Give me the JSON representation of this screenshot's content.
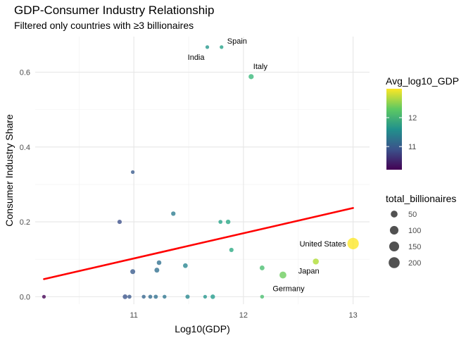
{
  "chart_data": {
    "type": "scatter",
    "title": "GDP-Consumer Industry Relationship",
    "subtitle": "Filtered only countries with ≥3 billionaires",
    "xlabel": "Log10(GDP)",
    "ylabel": "Consumer Industry Share",
    "xlim": [
      10.1,
      13.15
    ],
    "ylim": [
      -0.02,
      0.695
    ],
    "x_ticks": [
      11,
      12,
      13
    ],
    "x_tick_labels": [
      "11",
      "12",
      "13"
    ],
    "y_ticks": [
      0.0,
      0.2,
      0.4,
      0.6
    ],
    "y_tick_labels": [
      "0.0",
      "0.2",
      "0.4",
      "0.6"
    ],
    "grid": true,
    "color_scale": "viridis",
    "color_range": [
      10.2,
      13.0
    ],
    "legend_color": {
      "title": "Avg_log10_GDP",
      "ticks": [
        11,
        12
      ],
      "tick_labels": [
        "11",
        "12"
      ]
    },
    "legend_size": {
      "title": "total_billionaires",
      "values": [
        50,
        100,
        150,
        200
      ],
      "labels": [
        "50",
        "100",
        "150",
        "200"
      ]
    },
    "points": [
      {
        "x": 10.18,
        "y": 0.0,
        "n": 3
      },
      {
        "x": 10.87,
        "y": 0.2,
        "n": 8
      },
      {
        "x": 10.92,
        "y": 0.0,
        "n": 12
      },
      {
        "x": 10.96,
        "y": 0.0,
        "n": 5
      },
      {
        "x": 10.99,
        "y": 0.333,
        "n": 3
      },
      {
        "x": 10.99,
        "y": 0.067,
        "n": 15
      },
      {
        "x": 11.09,
        "y": 0.0,
        "n": 4
      },
      {
        "x": 11.15,
        "y": 0.0,
        "n": 5
      },
      {
        "x": 11.2,
        "y": 0.0,
        "n": 6
      },
      {
        "x": 11.21,
        "y": 0.071,
        "n": 14
      },
      {
        "x": 11.23,
        "y": 0.091,
        "n": 11
      },
      {
        "x": 11.28,
        "y": 0.0,
        "n": 4
      },
      {
        "x": 11.36,
        "y": 0.222,
        "n": 9
      },
      {
        "x": 11.47,
        "y": 0.083,
        "n": 12
      },
      {
        "x": 11.49,
        "y": 0.0,
        "n": 7
      },
      {
        "x": 11.65,
        "y": 0.0,
        "n": 3
      },
      {
        "x": 11.67,
        "y": 0.667,
        "n": 3
      },
      {
        "x": 11.72,
        "y": 0.0,
        "n": 10
      },
      {
        "x": 11.79,
        "y": 0.2,
        "n": 5
      },
      {
        "x": 11.8,
        "y": 0.667,
        "n": 3
      },
      {
        "x": 11.86,
        "y": 0.2,
        "n": 10
      },
      {
        "x": 11.89,
        "y": 0.125,
        "n": 8
      },
      {
        "x": 12.07,
        "y": 0.588,
        "n": 17
      },
      {
        "x": 12.17,
        "y": 0.077,
        "n": 13
      },
      {
        "x": 12.17,
        "y": 0.0,
        "n": 4
      },
      {
        "x": 12.36,
        "y": 0.058,
        "n": 52
      },
      {
        "x": 12.66,
        "y": 0.094,
        "n": 32
      },
      {
        "x": 13.0,
        "y": 0.142,
        "n": 220
      }
    ],
    "labels": [
      {
        "text": "Spain",
        "x": 11.8,
        "y": 0.667
      },
      {
        "text": "India",
        "x": 11.67,
        "y": 0.667
      },
      {
        "text": "Italy",
        "x": 12.07,
        "y": 0.588
      },
      {
        "text": "United States",
        "x": 13.0,
        "y": 0.142
      },
      {
        "text": "Japan",
        "x": 12.66,
        "y": 0.094
      },
      {
        "text": "Germany",
        "x": 12.36,
        "y": 0.058
      }
    ],
    "trend": {
      "x": [
        10.18,
        13.0
      ],
      "y": [
        0.047,
        0.237
      ],
      "color": "#ff0000"
    }
  }
}
